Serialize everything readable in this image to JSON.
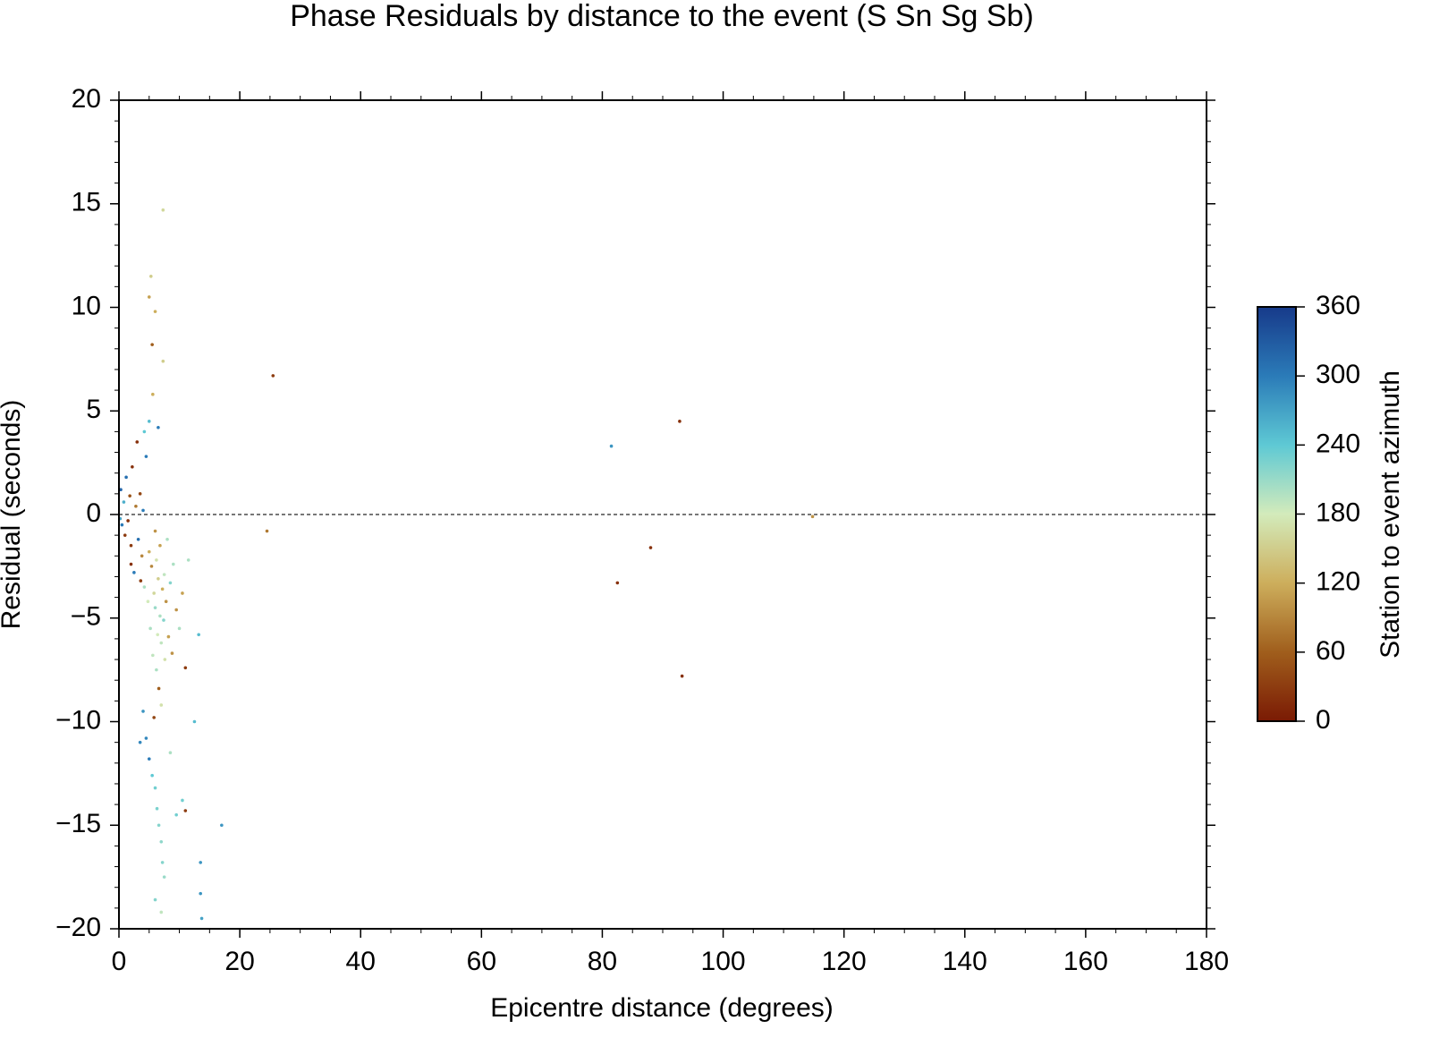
{
  "chart_data": {
    "type": "scatter",
    "title": "Phase Residuals by distance to the event (S Sn Sg Sb)",
    "x_label": "Epicentre distance (degrees)",
    "y_label": "Residual (seconds)",
    "colorbar_label": "Station to event azimuth",
    "xlim": [
      0,
      180
    ],
    "xticks": [
      0,
      20,
      40,
      60,
      80,
      100,
      120,
      140,
      160,
      180
    ],
    "xminor": 5,
    "ylim": [
      -20,
      20
    ],
    "yticks": [
      {
        "value": -20,
        "label": "−20"
      },
      {
        "value": -15,
        "label": "−15"
      },
      {
        "value": -10,
        "label": "−10"
      },
      {
        "value": -5,
        "label": "−5"
      },
      0,
      5,
      10,
      15,
      20
    ],
    "yminor": 1,
    "reference_line": 0,
    "clim": [
      0,
      360
    ],
    "cticks": [
      0,
      60,
      120,
      180,
      240,
      300,
      360
    ],
    "colormap": [
      {
        "value": 0,
        "color": "#7a1a04"
      },
      {
        "value": 60,
        "color": "#a05e1c"
      },
      {
        "value": 120,
        "color": "#cdae5c"
      },
      {
        "value": 180,
        "color": "#d3ebbb"
      },
      {
        "value": 240,
        "color": "#5ec9d4"
      },
      {
        "value": 300,
        "color": "#2b7bb8"
      },
      {
        "value": 360,
        "color": "#173a8a"
      }
    ],
    "x": [
      0.3,
      0.5,
      0.8,
      1.0,
      1.2,
      1.5,
      1.8,
      2.0,
      2.2,
      2.5,
      2.8,
      3.0,
      3.2,
      3.5,
      3.8,
      4.0,
      4.2,
      4.5,
      4.8,
      5.0,
      5.0,
      5.2,
      5.4,
      5.5,
      5.6,
      5.8,
      6.0,
      6.0,
      6.2,
      6.2,
      6.4,
      6.5,
      6.6,
      6.8,
      6.8,
      7.0,
      7.0,
      7.2,
      7.3,
      7.4,
      7.5,
      7.6,
      7.8,
      8.0,
      8.2,
      8.5,
      8.8,
      9.0,
      9.5,
      10,
      10.5,
      11,
      11.5,
      13.2,
      4.0,
      4.5,
      5.0,
      5.5,
      6.0,
      6.3,
      6.6,
      7.0,
      7.2,
      7.5,
      6.0,
      7.0,
      9.5,
      10.5,
      11.0,
      13.5,
      13.7,
      13.5,
      12.5,
      3.5,
      5.8,
      8.5,
      17,
      7.3,
      5.3,
      5.0,
      6.0,
      6.5,
      5.6,
      4.2,
      3.6,
      2.0,
      0.2,
      25.5,
      24.5,
      81.5,
      92.8,
      88,
      82.5,
      93.2,
      114.8
    ],
    "values": [
      1.2,
      -0.5,
      0.6,
      -1.0,
      1.8,
      -0.3,
      0.9,
      -1.5,
      2.3,
      -2.8,
      0.4,
      3.5,
      -1.2,
      1.0,
      -2.0,
      0.2,
      -3.5,
      2.8,
      -4.2,
      4.5,
      -1.8,
      -5.5,
      -2.5,
      8.2,
      -6.8,
      -3.8,
      -0.8,
      -4.5,
      -7.5,
      -2.2,
      -5.8,
      -3.1,
      -8.4,
      -4.9,
      -1.5,
      -6.2,
      -9.2,
      -3.6,
      7.4,
      -5.1,
      -2.9,
      -7.0,
      -4.2,
      -1.2,
      -5.9,
      -3.3,
      -6.7,
      -2.4,
      -4.6,
      -5.5,
      -3.8,
      -7.4,
      -2.2,
      -5.8,
      -9.5,
      -10.8,
      -11.8,
      -12.6,
      -13.2,
      -14.2,
      -15.0,
      -15.8,
      -16.8,
      -17.5,
      -18.6,
      -19.2,
      -14.5,
      -13.8,
      -14.3,
      -18.3,
      -19.5,
      -16.8,
      -10.0,
      -11.0,
      -9.8,
      -11.5,
      -15,
      14.7,
      11.5,
      10.5,
      9.8,
      4.2,
      5.8,
      4.0,
      -3.2,
      -2.4,
      -0.2,
      6.7,
      -0.8,
      3.3,
      4.5,
      -1.6,
      -3.3,
      -7.8,
      -0.1
    ],
    "azimuth": [
      320,
      300,
      260,
      30,
      310,
      20,
      50,
      30,
      20,
      300,
      80,
      20,
      310,
      40,
      90,
      300,
      200,
      300,
      180,
      250,
      120,
      200,
      90,
      60,
      190,
      160,
      100,
      210,
      200,
      170,
      180,
      150,
      60,
      200,
      110,
      190,
      170,
      120,
      150,
      220,
      190,
      170,
      100,
      200,
      110,
      220,
      100,
      200,
      100,
      200,
      110,
      30,
      200,
      250,
      280,
      290,
      300,
      240,
      230,
      225,
      220,
      215,
      220,
      210,
      220,
      190,
      230,
      230,
      30,
      280,
      270,
      280,
      250,
      290,
      40,
      200,
      280,
      160,
      150,
      110,
      120,
      300,
      120,
      240,
      30,
      20,
      270,
      30,
      80,
      280,
      20,
      20,
      20,
      20,
      100
    ]
  }
}
